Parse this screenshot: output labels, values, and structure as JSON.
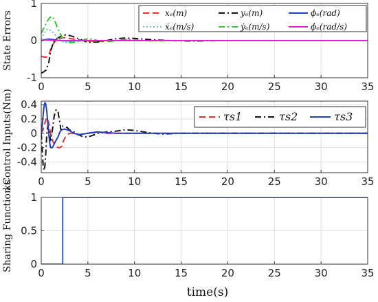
{
  "chart_data": [
    {
      "type": "line",
      "ylabel": "State Errors",
      "xlim": [
        0,
        35
      ],
      "ylim": [
        -1,
        1
      ],
      "xticks": [
        0,
        5,
        10,
        15,
        20,
        25,
        30,
        35
      ],
      "yticks": [
        -1,
        0,
        1
      ],
      "grid": true,
      "legend_position": "top-right",
      "series": [
        {
          "name": "xₑ(m)",
          "color": "#e8302e",
          "dash": "dashed",
          "x": [
            0,
            0.2,
            0.5,
            0.8,
            1.0,
            1.3,
            1.6,
            2.0,
            2.5,
            3,
            3.5,
            4,
            5,
            6,
            7,
            8,
            9,
            10,
            12,
            15,
            35
          ],
          "y": [
            -0.42,
            -0.44,
            -0.45,
            -0.4,
            -0.25,
            -0.08,
            0.02,
            0.06,
            0.08,
            0.06,
            0.04,
            0.02,
            -0.01,
            -0.02,
            -0.01,
            0.0,
            0.01,
            0.0,
            0.0,
            0.0,
            0.0
          ]
        },
        {
          "name": "yₑ(m)",
          "color": "#111111",
          "dash": "dashdot",
          "x": [
            0,
            0.2,
            0.5,
            0.8,
            1.0,
            1.3,
            1.6,
            2.0,
            2.5,
            3,
            3.5,
            4,
            4.5,
            5,
            6,
            7,
            8,
            9,
            10,
            11,
            12,
            14,
            16,
            20,
            35
          ],
          "y": [
            -0.88,
            -0.85,
            -0.8,
            -0.6,
            -0.3,
            -0.05,
            0.05,
            0.1,
            0.15,
            0.14,
            0.1,
            0.05,
            0.0,
            -0.05,
            -0.04,
            0.0,
            0.05,
            0.07,
            0.06,
            0.04,
            0.02,
            0.0,
            -0.01,
            0.0,
            0.0
          ]
        },
        {
          "name": "ϕₑ(rad)",
          "color": "#1f3fbf",
          "dash": "solid",
          "x": [
            0,
            0.3,
            0.8,
            1.5,
            2,
            3,
            5,
            8,
            35
          ],
          "y": [
            0.0,
            0.02,
            0.04,
            0.02,
            0.0,
            -0.01,
            0.0,
            0.0,
            0.0
          ]
        },
        {
          "name": "ẋₑ(m/s)",
          "color": "#6fb7d9",
          "dash": "dotted",
          "x": [
            0,
            0.3,
            0.6,
            1.0,
            1.4,
            1.8,
            2.2,
            2.6,
            3.0,
            4,
            5,
            7,
            35
          ],
          "y": [
            0.05,
            0.2,
            0.3,
            0.28,
            0.18,
            0.06,
            -0.02,
            -0.05,
            -0.04,
            0.0,
            0.01,
            0.0,
            0.0
          ]
        },
        {
          "name": "ẏₑ(m/s)",
          "color": "#2ec72e",
          "dash": "dashdot",
          "x": [
            0,
            0.3,
            0.6,
            0.9,
            1.2,
            1.5,
            1.8,
            2.2,
            2.6,
            3,
            3.5,
            4,
            4.5,
            5,
            5.5,
            6,
            7,
            7.5,
            8,
            9,
            10,
            11,
            12,
            15,
            35
          ],
          "y": [
            0.2,
            0.35,
            0.5,
            0.62,
            0.65,
            0.5,
            0.3,
            0.1,
            0.0,
            -0.05,
            -0.05,
            -0.02,
            0.02,
            0.05,
            0.04,
            0.0,
            -0.02,
            -0.02,
            0.0,
            0.03,
            0.02,
            0.0,
            -0.01,
            0.0,
            0.0
          ]
        },
        {
          "name": "ϕ̇ₑ(rad/s)",
          "color": "#e020d0",
          "dash": "solid",
          "x": [
            0,
            0.5,
            1.0,
            2,
            35
          ],
          "y": [
            0.0,
            0.02,
            0.01,
            0.0,
            0.0
          ]
        }
      ]
    },
    {
      "type": "line",
      "ylabel": "Control Inputs(Nm)",
      "xlim": [
        0,
        35
      ],
      "ylim": [
        -0.55,
        0.45
      ],
      "xticks": [
        0,
        5,
        10,
        15,
        20,
        25,
        30,
        35
      ],
      "yticks": [
        -0.4,
        -0.2,
        0,
        0.2,
        0.4
      ],
      "grid": true,
      "legend_position": "top-right",
      "series": [
        {
          "name": "τs1",
          "color": "#e8302e",
          "dash": "dashed",
          "x": [
            0,
            0.2,
            0.4,
            0.6,
            0.8,
            1.0,
            1.2,
            1.4,
            1.6,
            1.8,
            2.0,
            2.2,
            2.4,
            2.6,
            3,
            3.5,
            4,
            5,
            6,
            7,
            8,
            10,
            35
          ],
          "y": [
            0.0,
            0.05,
            0.15,
            0.22,
            0.15,
            0.0,
            -0.1,
            -0.15,
            -0.18,
            -0.2,
            -0.2,
            -0.18,
            -0.1,
            -0.05,
            0.0,
            0.0,
            -0.02,
            0.0,
            0.02,
            0.0,
            0.0,
            0.0,
            0.0
          ]
        },
        {
          "name": "τs2",
          "color": "#111111",
          "dash": "dashdot",
          "x": [
            0,
            0.1,
            0.2,
            0.3,
            0.4,
            0.5,
            0.6,
            0.7,
            0.8,
            1.0,
            1.2,
            1.4,
            1.6,
            1.8,
            2.0,
            2.1,
            2.2,
            2.4,
            2.8,
            3,
            3.5,
            4,
            4.5,
            5,
            5.5,
            6,
            7,
            8,
            9,
            10,
            11,
            12,
            13,
            15,
            35
          ],
          "y": [
            0.0,
            -0.2,
            -0.45,
            -0.52,
            -0.45,
            -0.25,
            0.0,
            0.1,
            0.05,
            -0.1,
            0.05,
            0.25,
            0.33,
            0.3,
            0.15,
            0.05,
            0.1,
            0.1,
            0.08,
            0.05,
            0.02,
            -0.02,
            -0.05,
            -0.05,
            -0.03,
            0.0,
            0.02,
            0.03,
            0.05,
            0.04,
            0.02,
            0.0,
            -0.01,
            0.0,
            0.0
          ]
        },
        {
          "name": "τs3",
          "color": "#1f3fbf",
          "dash": "solid",
          "x": [
            0,
            0.1,
            0.2,
            0.3,
            0.4,
            0.5,
            0.6,
            0.7,
            0.8,
            0.9,
            1.0,
            1.2,
            1.5,
            1.8,
            2.0,
            2.2,
            2.5,
            3,
            3.5,
            4,
            5,
            6,
            7,
            8,
            10,
            12,
            35
          ],
          "y": [
            0.0,
            0.1,
            0.25,
            0.38,
            0.43,
            0.4,
            0.3,
            0.15,
            0.0,
            -0.12,
            -0.2,
            -0.2,
            -0.12,
            -0.05,
            0.02,
            0.05,
            0.06,
            0.04,
            0.0,
            -0.02,
            0.0,
            0.02,
            0.01,
            0.0,
            0.0,
            0.0,
            0.0
          ]
        }
      ]
    },
    {
      "type": "line",
      "ylabel": "Sharing Function",
      "ylabel_symbol": "ks",
      "xlabel": "time(s)",
      "xlim": [
        0,
        35
      ],
      "ylim": [
        0,
        1
      ],
      "xticks": [
        0,
        5,
        10,
        15,
        20,
        25,
        30,
        35
      ],
      "yticks": [
        0,
        0.5,
        1
      ],
      "grid": true,
      "series": [
        {
          "name": "",
          "color": "#3060c0",
          "dash": "solid",
          "x": [
            0,
            2.3,
            2.3,
            35
          ],
          "y": [
            0,
            0,
            1,
            1
          ]
        }
      ]
    }
  ]
}
